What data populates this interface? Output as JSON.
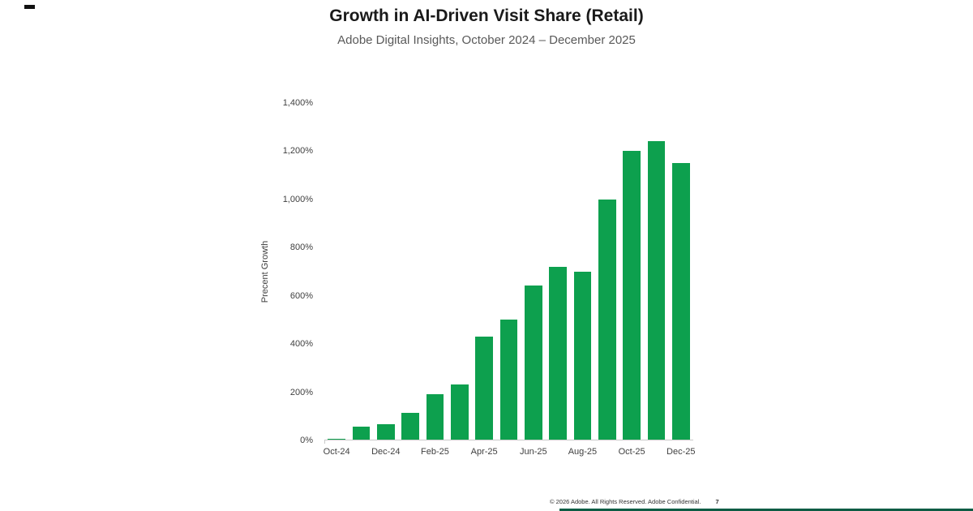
{
  "title": "Growth in AI-Driven Visit Share (Retail)",
  "subtitle": "Adobe Digital Insights, October 2024 – December 2025",
  "chart_data": {
    "type": "bar",
    "title": "Growth in AI-Driven Visit Share (Retail)",
    "subtitle": "Adobe Digital Insights, October 2024 – December 2025",
    "xlabel": "",
    "ylabel": "Precent Growth",
    "ylim": [
      0,
      1400
    ],
    "grid": false,
    "legend": "none",
    "bar_color": "#0DA04E",
    "categories": [
      "Oct-24",
      "Nov-24",
      "Dec-24",
      "Jan-25",
      "Feb-25",
      "Mar-25",
      "Apr-25",
      "May-25",
      "Jun-25",
      "Jul-25",
      "Aug-25",
      "Sep-25",
      "Oct-25",
      "Nov-25",
      "Dec-25"
    ],
    "values": [
      5,
      55,
      65,
      110,
      190,
      230,
      430,
      500,
      640,
      720,
      700,
      1000,
      1200,
      1240,
      1150
    ],
    "y_tick_labels": [
      "1,400%",
      "1,200%",
      "1,000%",
      "800%",
      "600%",
      "400%",
      "200%",
      "0%"
    ],
    "x_tick_labels": [
      "Oct-24",
      "",
      "Dec-24",
      "",
      "Feb-25",
      "",
      "Apr-25",
      "",
      "Jun-25",
      "",
      "Aug-25",
      "",
      "Oct-25",
      "",
      "Dec-25"
    ]
  },
  "footer": {
    "copyright": "© 2026 Adobe. All Rights Reserved. Adobe Confidential.",
    "page": "7"
  }
}
